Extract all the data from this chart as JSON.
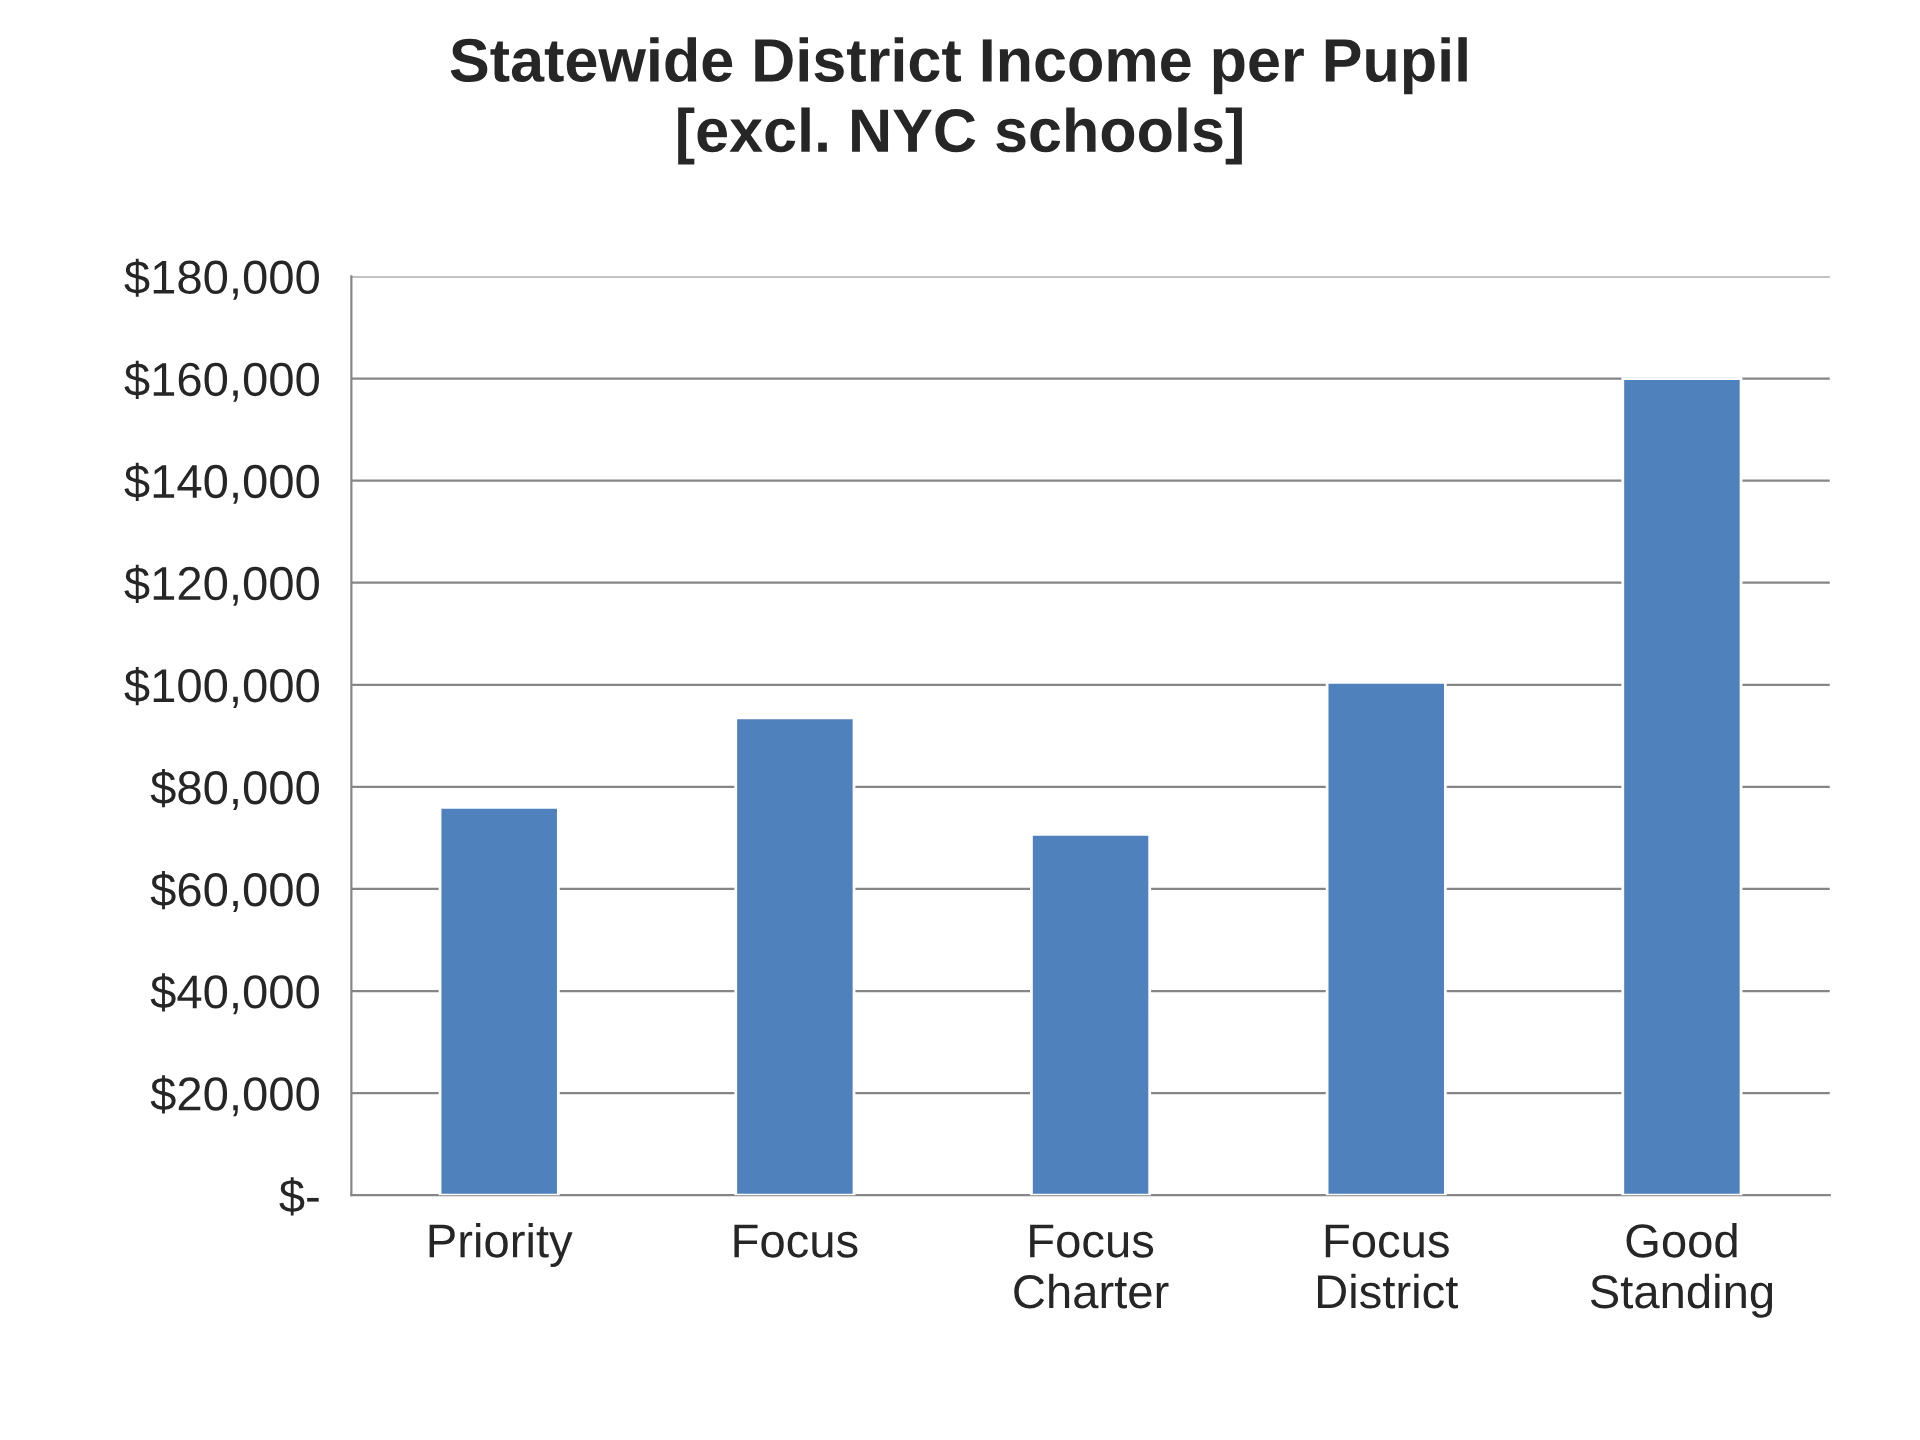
{
  "chart_data": {
    "type": "bar",
    "title": "Statewide District Income per Pupil\n[excl. NYC schools]",
    "categories": [
      "Priority",
      "Focus",
      "Focus\nCharter",
      "Focus\nDistrict",
      "Good\nStanding"
    ],
    "values": [
      76000,
      93500,
      70700,
      100500,
      160000
    ],
    "color": "#4f81bd",
    "ylim": [
      0,
      180000
    ],
    "yticks": [
      {
        "value": 0,
        "label": "$-"
      },
      {
        "value": 20000,
        "label": "$20,000"
      },
      {
        "value": 40000,
        "label": "$40,000"
      },
      {
        "value": 60000,
        "label": "$60,000"
      },
      {
        "value": 80000,
        "label": "$80,000"
      },
      {
        "value": 100000,
        "label": "$100,000"
      },
      {
        "value": 120000,
        "label": "$120,000"
      },
      {
        "value": 140000,
        "label": "$140,000"
      },
      {
        "value": 160000,
        "label": "$160,000"
      },
      {
        "value": 180000,
        "label": "$180,000"
      }
    ],
    "grid": "y",
    "legend": false
  }
}
